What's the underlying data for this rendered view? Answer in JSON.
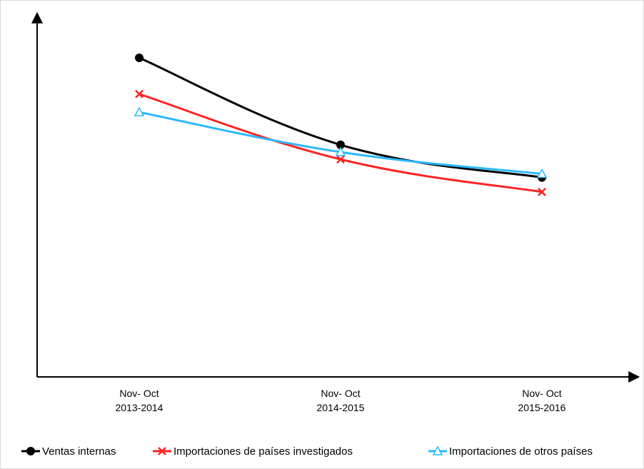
{
  "chart_data": {
    "type": "line",
    "title": "",
    "xlabel": "",
    "ylabel": "",
    "categories": [
      [
        "Nov- Oct",
        "2013-2014"
      ],
      [
        "Nov- Oct",
        "2014-2015"
      ],
      [
        "Nov- Oct",
        "2015-2016"
      ]
    ],
    "ylim": [
      0,
      100
    ],
    "grid": false,
    "legend": "bottom",
    "series": [
      {
        "name": "Ventas internas",
        "values": [
          88,
          64,
          55
        ],
        "color": "#000000",
        "marker": "circle"
      },
      {
        "name": "Importaciones de países investigados",
        "values": [
          78,
          60,
          51
        ],
        "color": "#ff2222",
        "marker": "x"
      },
      {
        "name": "Importaciones de otros países",
        "values": [
          73,
          62,
          56
        ],
        "color": "#2ab8ff",
        "marker": "triangle"
      }
    ]
  }
}
